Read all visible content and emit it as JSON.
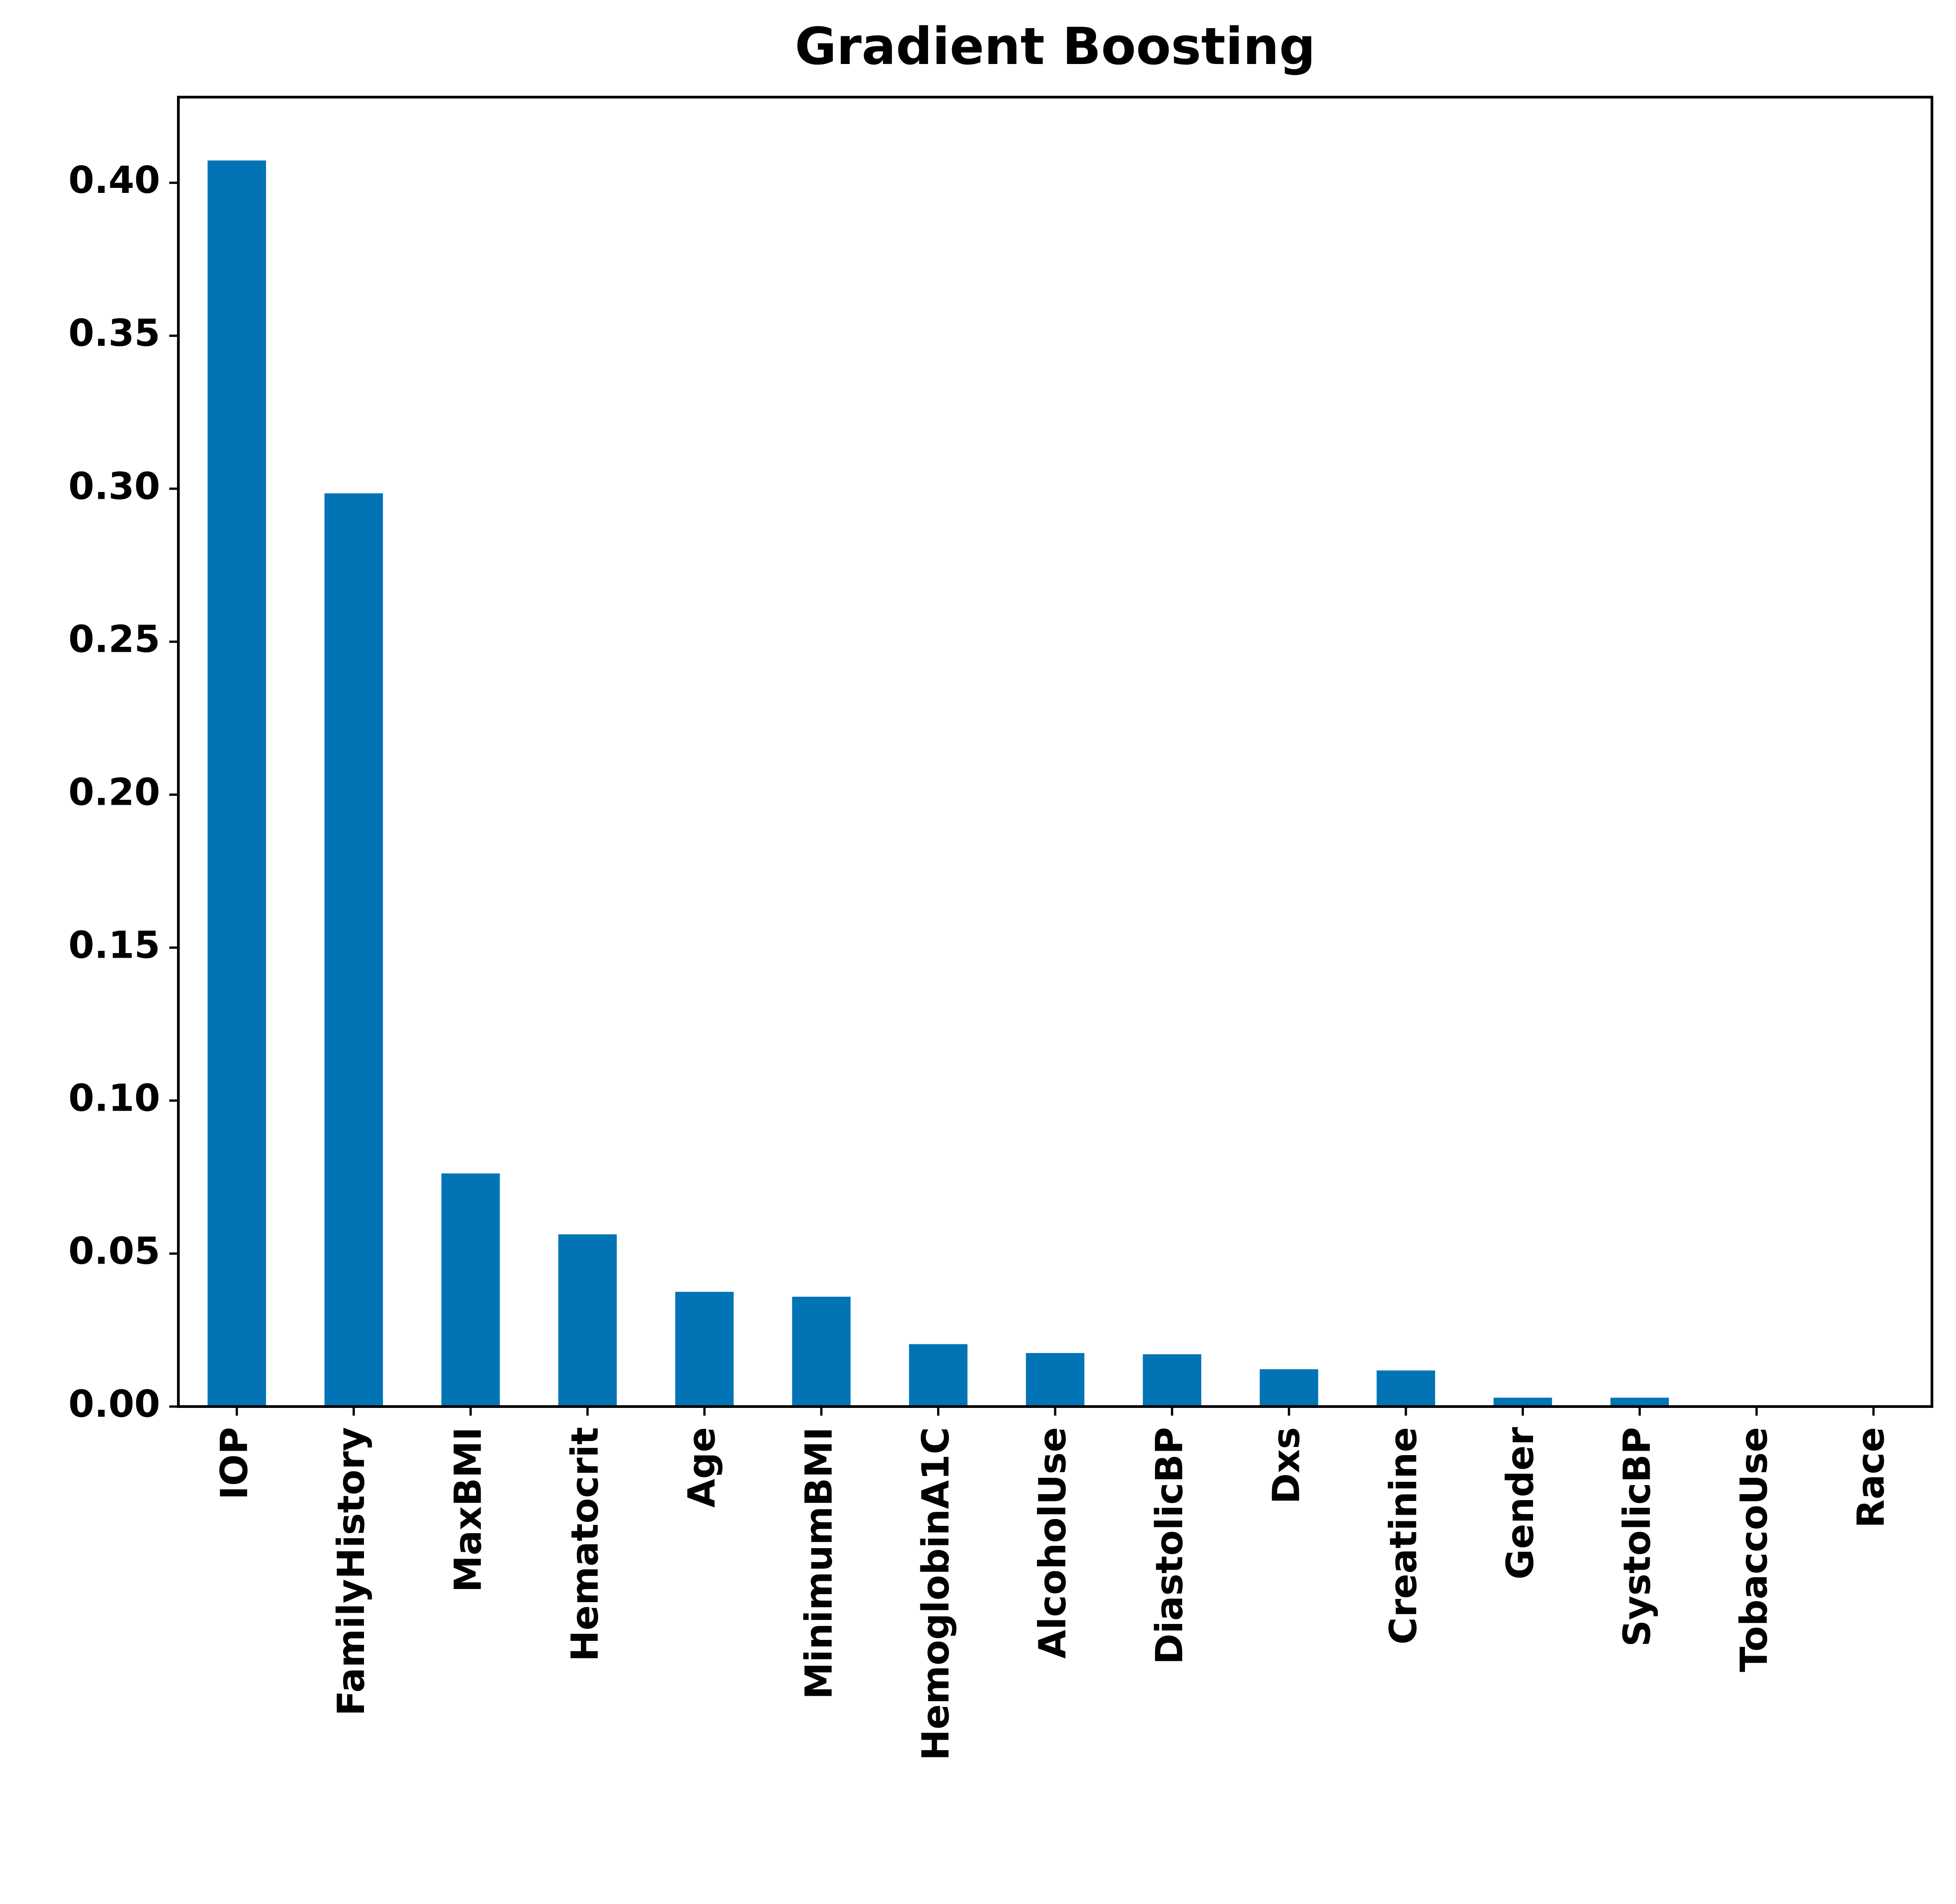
{
  "chart_data": {
    "type": "bar",
    "title": "Gradient Boosting",
    "categories": [
      "IOP",
      "FamilyHistory",
      "MaxBMI",
      "Hematocrit",
      "Age",
      "MinimumBMI",
      "HemoglobinA1C",
      "AlcoholUse",
      "DiastolicBP",
      "Dxs",
      "Creatinine",
      "Gender",
      "SystolicBP",
      "TobaccoUse",
      "Race"
    ],
    "values": [
      0.4073,
      0.2985,
      0.0762,
      0.0563,
      0.0375,
      0.0359,
      0.0204,
      0.0175,
      0.0171,
      0.0122,
      0.0118,
      0.0029,
      0.0029,
      0,
      0
    ],
    "color": "#0274b6",
    "ylim": [
      0,
      0.428
    ],
    "yticks": [
      {
        "value": 0,
        "label": "0.00"
      },
      {
        "value": 0.05,
        "label": "0.05"
      },
      {
        "value": 0.1,
        "label": "0.10"
      },
      {
        "value": 0.15,
        "label": "0.15"
      },
      {
        "value": 0.2,
        "label": "0.20"
      },
      {
        "value": 0.25,
        "label": "0.25"
      },
      {
        "value": 0.3,
        "label": "0.30"
      },
      {
        "value": 0.35,
        "label": "0.35"
      },
      {
        "value": 0.4,
        "label": "0.40"
      }
    ],
    "grid": false
  }
}
